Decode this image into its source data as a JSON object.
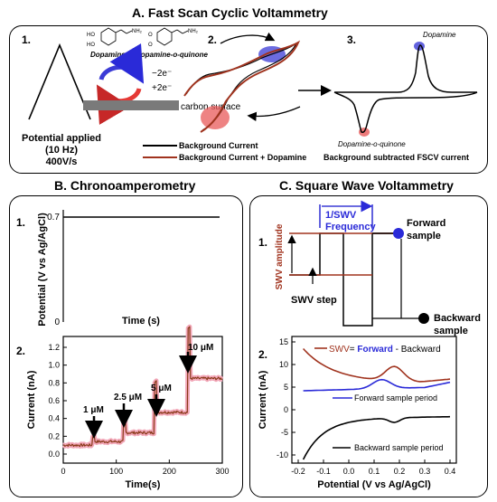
{
  "colors": {
    "background_current": "#000000",
    "dopamine_trace": "#a0331e",
    "oxidation": "#3b3bd6",
    "reduction": "#e85a5a",
    "highlight": "#f2a7b8",
    "forward": "#2a2ad8",
    "surface": "#777777"
  },
  "panel_a": {
    "title": "A. Fast Scan Cyclic Voltammetry",
    "step1": "1.",
    "step2": "2.",
    "step3": "3.",
    "dopamine_label": "Dopamine",
    "quinone_label": "Dopamine-o-quinone",
    "electrons_out": "−2e⁻",
    "electrons_in": "+2e⁻",
    "surface_label": "carbon surface",
    "potential_line1": "Potential applied",
    "potential_line2": "(10 Hz)",
    "potential_line3": "400V/s",
    "legend_background": "Background Current",
    "legend_dopamine": "Background Current + Dopamine",
    "subtracted_label": "Background subtracted FSCV current",
    "peak_top_label": "Dopamine",
    "peak_bottom_label": "Dopamine-o-quinone",
    "icons": [
      "redox-cycle-arrows-icon",
      "dopamine-structure-icon",
      "quinone-structure-icon"
    ]
  },
  "panel_b": {
    "title": "B. Chronoamperometry",
    "step1": "1.",
    "step2": "2.",
    "potential_axis_label": "Potential (V vs Ag/AgCl)",
    "potential_tick_top": "0.7",
    "potential_tick_bottom": "0",
    "time_label": "Time (s)",
    "current_axis_label": "Current (nA)",
    "time_axis_label": "Time(s)",
    "y_ticks": [
      "0.0",
      "0.2",
      "0.4",
      "0.6",
      "0.8",
      "1.0",
      "1.2"
    ],
    "x_ticks": [
      "0",
      "100",
      "200",
      "300"
    ],
    "annotations": [
      "1 μM",
      "2.5 μM",
      "5 μM",
      "10 μM"
    ]
  },
  "panel_c": {
    "title": "C. Square Wave Voltammetry",
    "step1": "1.",
    "step2": "2.",
    "freq_line1": "1/SWV",
    "freq_line2": "Frequency",
    "amplitude_label": "SWV amplitude",
    "step_label": "SWV step",
    "forward_line1": "Forward",
    "forward_line2": "sample",
    "backward_line1": "Backward",
    "backward_line2": "sample",
    "current_axis_label": "Current (nA)",
    "potential_axis_label": "Potential (V vs Ag/AgCl)",
    "y_ticks": [
      "15",
      "10",
      "5",
      "0",
      "-5",
      "-10"
    ],
    "x_ticks": [
      "-0.2",
      "-0.1",
      "0.0",
      "0.1",
      "0.2",
      "0.3",
      "0.4"
    ],
    "eq_swv": "SWV",
    "eq_eq": "= ",
    "eq_forward": "Forward",
    "eq_rest": " - Backward",
    "forward_period_label": "Forward sample period",
    "backward_period_label": "Backward sample period"
  }
}
